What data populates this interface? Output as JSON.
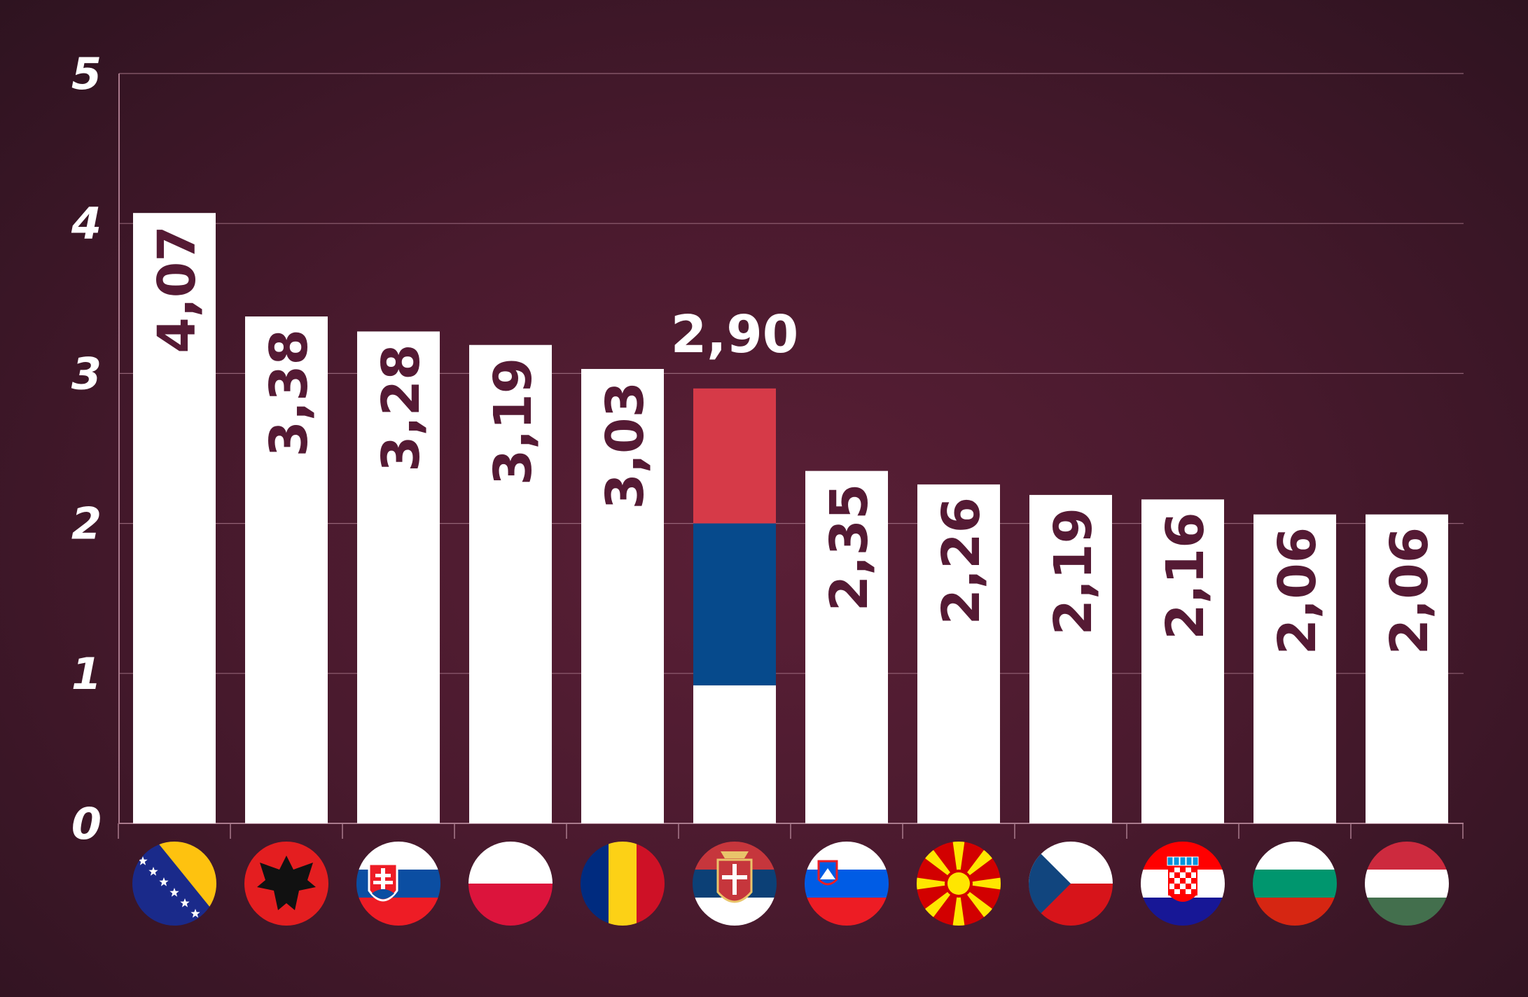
{
  "chart_data": {
    "type": "bar",
    "categories": [
      "Bosnia and Herzegovina",
      "Albania",
      "Slovakia",
      "Poland",
      "Romania",
      "Serbia",
      "Slovenia",
      "North Macedonia",
      "Czech Republic",
      "Croatia",
      "Bulgaria",
      "Hungary"
    ],
    "values": [
      4.07,
      3.38,
      3.28,
      3.19,
      3.03,
      2.9,
      2.35,
      2.26,
      2.19,
      2.16,
      2.06,
      2.06
    ],
    "value_labels": [
      "4,07",
      "3,38",
      "3,28",
      "3,19",
      "3,03",
      "2,90",
      "2,35",
      "2,26",
      "2,19",
      "2,16",
      "2,06",
      "2,06"
    ],
    "highlight_index": 5,
    "ylim": [
      0,
      5
    ],
    "yticks": [
      "0",
      "1",
      "2",
      "3",
      "4",
      "5"
    ],
    "grid": true,
    "xlabel": "",
    "ylabel": "",
    "title": ""
  },
  "flags": [
    "bosnia-flag-icon",
    "albania-flag-icon",
    "slovakia-flag-icon",
    "poland-flag-icon",
    "romania-flag-icon",
    "serbia-flag-icon",
    "slovenia-flag-icon",
    "north-macedonia-flag-icon",
    "czech-flag-icon",
    "croatia-flag-icon",
    "bulgaria-flag-icon",
    "hungary-flag-icon"
  ],
  "colors": {
    "bar": "#ffffff",
    "label": "#551a34",
    "grid": "#a97a8c",
    "serbia_red": "#d63a48",
    "serbia_blue": "#064a8c",
    "serbia_white": "#ffffff"
  }
}
